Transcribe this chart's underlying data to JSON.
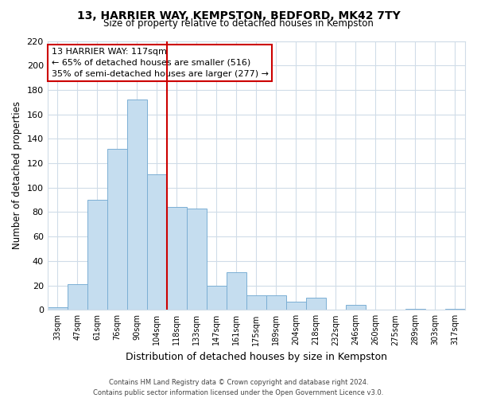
{
  "title": "13, HARRIER WAY, KEMPSTON, BEDFORD, MK42 7TY",
  "subtitle": "Size of property relative to detached houses in Kempston",
  "xlabel": "Distribution of detached houses by size in Kempston",
  "ylabel": "Number of detached properties",
  "bar_labels": [
    "33sqm",
    "47sqm",
    "61sqm",
    "76sqm",
    "90sqm",
    "104sqm",
    "118sqm",
    "133sqm",
    "147sqm",
    "161sqm",
    "175sqm",
    "189sqm",
    "204sqm",
    "218sqm",
    "232sqm",
    "246sqm",
    "260sqm",
    "275sqm",
    "289sqm",
    "303sqm",
    "317sqm"
  ],
  "bar_values": [
    2,
    21,
    90,
    132,
    172,
    111,
    84,
    83,
    20,
    31,
    12,
    12,
    7,
    10,
    0,
    4,
    0,
    0,
    1,
    0,
    1
  ],
  "bar_color": "#c5ddef",
  "bar_edge_color": "#7bafd4",
  "marker_index": 6,
  "marker_label": "13 HARRIER WAY: 117sqm",
  "marker_line_color": "#cc0000",
  "annotation_line1": "← 65% of detached houses are smaller (516)",
  "annotation_line2": "35% of semi-detached houses are larger (277) →",
  "ylim": [
    0,
    220
  ],
  "yticks": [
    0,
    20,
    40,
    60,
    80,
    100,
    120,
    140,
    160,
    180,
    200,
    220
  ],
  "footer_line1": "Contains HM Land Registry data © Crown copyright and database right 2024.",
  "footer_line2": "Contains public sector information licensed under the Open Government Licence v3.0.",
  "background_color": "#ffffff",
  "grid_color": "#d0dce8",
  "annotation_box_color": "#cc0000"
}
